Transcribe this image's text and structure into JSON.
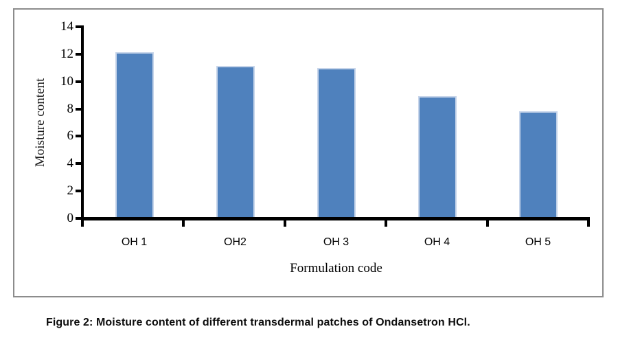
{
  "figure": {
    "caption": "Figure 2: Moisture content of different transdermal patches of Ondansetron HCl."
  },
  "chart_data": {
    "type": "bar",
    "title": "",
    "categories": [
      "OH 1",
      "OH2",
      "OH 3",
      "OH 4",
      "OH 5"
    ],
    "values": [
      12,
      11,
      10.85,
      8.8,
      7.7
    ],
    "xlabel": "Formulation code",
    "ylabel": "Moisture content",
    "ylim": [
      0,
      14
    ],
    "yticks": [
      14,
      12,
      10,
      8,
      6,
      4,
      2,
      0
    ],
    "grid": false,
    "legend": false,
    "colors": {
      "bar_fill": "#4F81BD",
      "bar_edge": "#C7D5EA",
      "axis": "#000000",
      "frame_border": "#8C8C8C"
    }
  }
}
